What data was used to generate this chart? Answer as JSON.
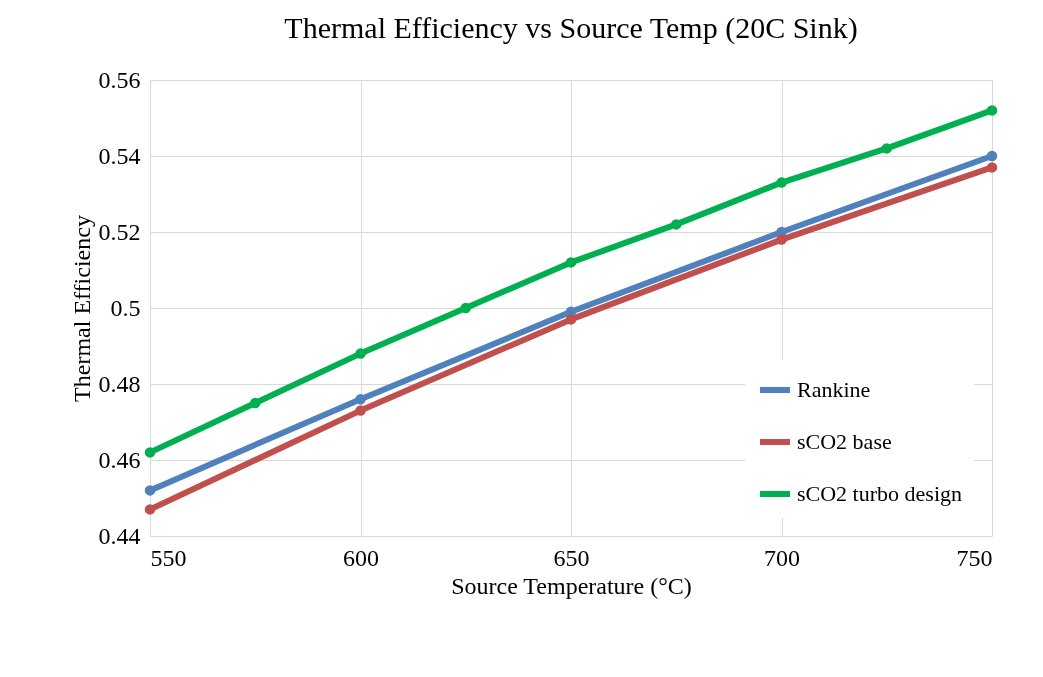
{
  "chart_data": {
    "type": "line",
    "title": "Thermal Efficiency vs Source Temp (20C Sink)",
    "xlabel": "Source Temperature (°C)",
    "ylabel": "Thermal Efficiency",
    "series": [
      {
        "name": "Rankine",
        "color": "#4f81bd",
        "x": [
          550,
          600,
          650,
          700,
          750
        ],
        "values": [
          0.452,
          0.476,
          0.499,
          0.52,
          0.54
        ]
      },
      {
        "name": "sCO2 base",
        "color": "#c0504d",
        "x": [
          550,
          600,
          650,
          700,
          750
        ],
        "values": [
          0.447,
          0.473,
          0.497,
          0.518,
          0.537
        ]
      },
      {
        "name": "sCO2 turbo design",
        "color": "#00b050",
        "x": [
          550,
          575,
          600,
          625,
          650,
          675,
          700,
          725,
          750
        ],
        "values": [
          0.462,
          0.475,
          0.488,
          0.5,
          0.512,
          0.522,
          0.533,
          0.542,
          0.552
        ]
      }
    ],
    "xlim": [
      550,
      750
    ],
    "xticks": [
      550,
      600,
      650,
      700,
      750
    ],
    "ylim": [
      0.44,
      0.56
    ],
    "yticks": [
      0.44,
      0.46,
      0.48,
      0.5,
      0.52,
      0.54,
      0.56
    ],
    "grid": true,
    "legend": "bottom right",
    "marker": "circle"
  }
}
